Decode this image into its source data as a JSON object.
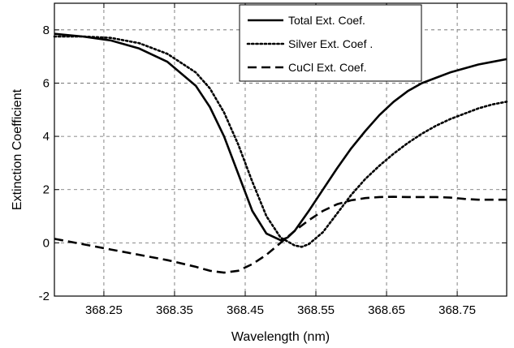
{
  "chart_data": {
    "type": "line",
    "title": "",
    "xlabel": "Wavelength (nm)",
    "ylabel": "Extinction Coefficient",
    "xlim": [
      368.18,
      368.82
    ],
    "ylim": [
      -2,
      9
    ],
    "xticks": [
      368.25,
      368.35,
      368.45,
      368.55,
      368.65,
      368.75
    ],
    "xtick_labels": [
      "368.25",
      "368.35",
      "368.45",
      "368.55",
      "368.65",
      "368.75"
    ],
    "yticks": [
      -2,
      0,
      2,
      4,
      6,
      8
    ],
    "ytick_labels": [
      "-2",
      "0",
      "2",
      "4",
      "6",
      "8"
    ],
    "grid": true,
    "legend_position": "top-right",
    "series": [
      {
        "name": "Total Ext. Coef.",
        "line_style": "solid",
        "color": "#000000",
        "x": [
          368.18,
          368.22,
          368.26,
          368.3,
          368.34,
          368.38,
          368.4,
          368.42,
          368.44,
          368.46,
          368.48,
          368.5,
          368.51,
          368.52,
          368.54,
          368.56,
          368.58,
          368.6,
          368.62,
          368.64,
          368.66,
          368.68,
          368.7,
          368.72,
          368.74,
          368.76,
          368.78,
          368.8,
          368.82
        ],
        "y": [
          7.85,
          7.75,
          7.6,
          7.3,
          6.8,
          5.9,
          5.1,
          4.0,
          2.6,
          1.2,
          0.35,
          0.1,
          0.2,
          0.45,
          1.2,
          2.0,
          2.8,
          3.55,
          4.2,
          4.8,
          5.3,
          5.7,
          6.0,
          6.2,
          6.4,
          6.55,
          6.7,
          6.8,
          6.9
        ]
      },
      {
        "name": "Silver Ext. Coef .",
        "line_style": "dotted",
        "color": "#000000",
        "x": [
          368.18,
          368.22,
          368.26,
          368.3,
          368.34,
          368.38,
          368.4,
          368.42,
          368.44,
          368.46,
          368.48,
          368.5,
          368.52,
          368.53,
          368.54,
          368.56,
          368.58,
          368.6,
          368.62,
          368.64,
          368.66,
          368.68,
          368.7,
          368.72,
          368.74,
          368.76,
          368.78,
          368.8,
          368.82
        ],
        "y": [
          7.75,
          7.75,
          7.7,
          7.5,
          7.1,
          6.4,
          5.8,
          4.9,
          3.7,
          2.3,
          1.0,
          0.2,
          -0.1,
          -0.15,
          -0.05,
          0.4,
          1.1,
          1.8,
          2.4,
          2.9,
          3.35,
          3.75,
          4.1,
          4.4,
          4.65,
          4.85,
          5.05,
          5.2,
          5.3
        ]
      },
      {
        "name": "CuCl Ext. Coef.",
        "line_style": "dashed",
        "color": "#000000",
        "x": [
          368.18,
          368.22,
          368.26,
          368.3,
          368.34,
          368.38,
          368.4,
          368.42,
          368.44,
          368.46,
          368.48,
          368.5,
          368.52,
          368.54,
          368.56,
          368.58,
          368.6,
          368.62,
          368.64,
          368.66,
          368.68,
          368.7,
          368.72,
          368.74,
          368.76,
          368.78,
          368.8,
          368.82
        ],
        "y": [
          0.15,
          -0.05,
          -0.25,
          -0.45,
          -0.65,
          -0.9,
          -1.05,
          -1.12,
          -1.05,
          -0.8,
          -0.45,
          0.0,
          0.45,
          0.85,
          1.2,
          1.45,
          1.6,
          1.68,
          1.72,
          1.73,
          1.72,
          1.72,
          1.72,
          1.7,
          1.65,
          1.62,
          1.62,
          1.62
        ]
      }
    ]
  }
}
